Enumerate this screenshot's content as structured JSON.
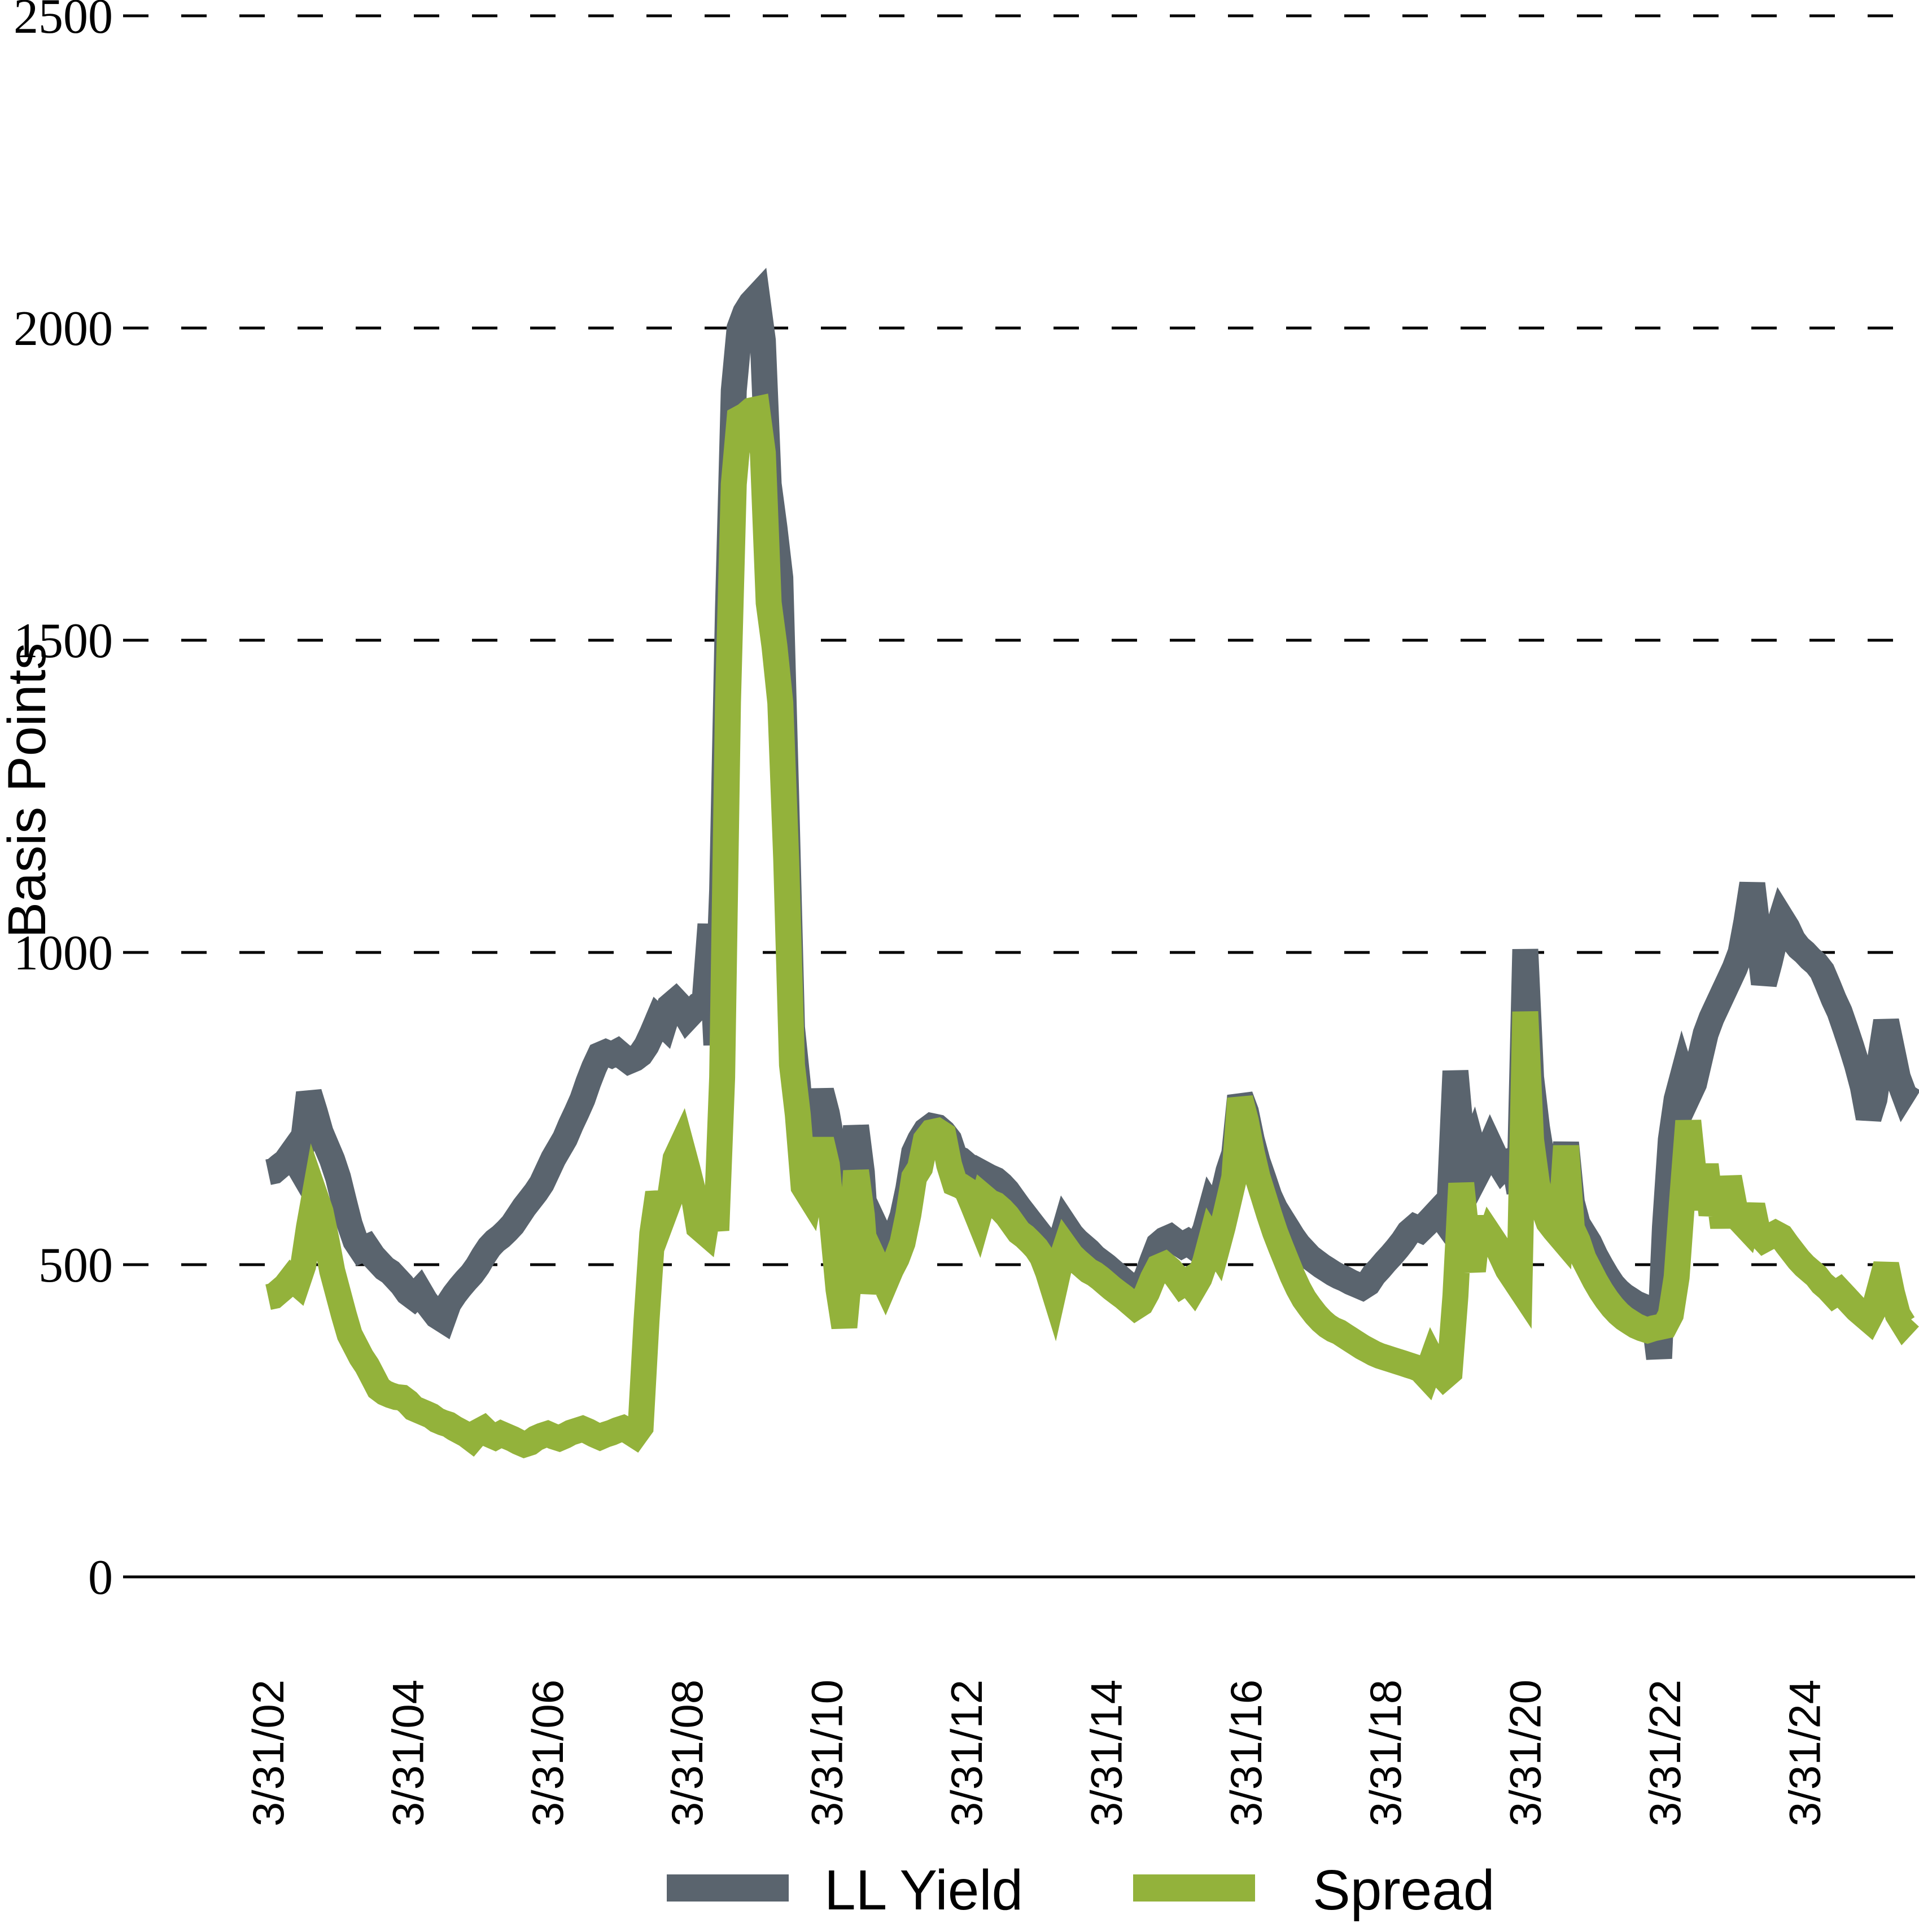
{
  "chart_data": {
    "type": "line",
    "title": "",
    "xlabel": "",
    "ylabel": "Basis Points",
    "unit": "basis points",
    "ylim": [
      0,
      2500
    ],
    "y_ticks": [
      0,
      500,
      1000,
      1500,
      2000,
      2500
    ],
    "grid": "horizontal-dashed",
    "legend_position": "bottom-center",
    "x_frequency": "monthly",
    "x_start": "3/31/02",
    "x_end": "9/30/25",
    "x_tick_labels": [
      "3/31/02",
      "3/31/04",
      "3/31/06",
      "3/31/08",
      "3/31/10",
      "3/31/12",
      "3/31/14",
      "3/31/16",
      "3/31/18",
      "3/31/20",
      "3/31/22",
      "3/31/24"
    ],
    "x_tick_indices": [
      0,
      24,
      48,
      72,
      96,
      120,
      144,
      168,
      192,
      216,
      240,
      264
    ],
    "series": [
      {
        "name": "LL Yield",
        "color": "#5A646E",
        "values": [
          648,
          650,
          658,
          665,
          678,
          662,
          696,
          775,
          745,
          712,
          690,
          668,
          640,
          602,
          565,
          538,
          524,
          528,
          514,
          504,
          494,
          488,
          478,
          468,
          455,
          448,
          458,
          442,
          430,
          418,
          412,
          438,
          452,
          464,
          475,
          485,
          498,
          514,
          528,
          538,
          545,
          554,
          564,
          578,
          592,
          604,
          616,
          630,
          650,
          670,
          686,
          702,
          724,
          744,
          765,
          792,
          816,
          836,
          840,
          836,
          841,
          833,
          826,
          830,
          837,
          851,
          871,
          893,
          884,
          914,
          922,
          912,
          896,
          906,
          916,
          921,
          1045,
          852,
          1100,
          1550,
          1900,
          2000,
          2025,
          2040,
          2050,
          1980,
          1750,
          1680,
          1600,
          1250,
          880,
          790,
          665,
          690,
          735,
          778,
          742,
          690,
          600,
          490,
          575,
          722,
          648,
          505,
          568,
          548,
          508,
          532,
          552,
          578,
          622,
          680,
          700,
          715,
          722,
          720,
          712,
          700,
          672,
          668,
          660,
          635,
          610,
          645,
          640,
          636,
          628,
          618,
          605,
          592,
          580,
          568,
          556,
          544,
          520,
          487,
          530,
          562,
          548,
          538,
          530,
          522,
          512,
          505,
          498,
          490,
          482,
          474,
          466,
          458,
          464,
          482,
          508,
          532,
          540,
          544,
          537,
          531,
          536,
          529,
          535,
          556,
          590,
          575,
          610,
          650,
          678,
          770,
          745,
          700,
          665,
          638,
          610,
          590,
          575,
          560,
          545,
          532,
          522,
          512,
          505,
          498,
          492,
          486,
          481,
          477,
          472,
          468,
          464,
          470,
          484,
          494,
          505,
          515,
          526,
          538,
          552,
          560,
          556,
          565,
          575,
          585,
          572,
          600,
          810,
          705,
          660,
          685,
          650,
          668,
          690,
          670,
          655,
          665,
          668,
          616,
          1005,
          800,
          720,
          662,
          645,
          628,
          615,
          695,
          600,
          565,
          550,
          535,
          515,
          498,
          482,
          468,
          458,
          450,
          444,
          438,
          434,
          430,
          425,
          350,
          560,
          700,
          765,
          800,
          770,
          790,
          830,
          870,
          895,
          915,
          935,
          955,
          975,
          1000,
          1050,
          1110,
          1030,
          950,
          985,
          1025,
          1055,
          1040,
          1020,
          1008,
          1000,
          990,
          982,
          970,
          948,
          925,
          905,
          878,
          850,
          820,
          785,
          735,
          765,
          830,
          890,
          845,
          800,
          775,
          790
        ]
      },
      {
        "name": "Spread",
        "color": "#93B23B",
        "values": [
          448,
          450,
          458,
          466,
          478,
          470,
          498,
          560,
          612,
          585,
          540,
          490,
          455,
          420,
          388,
          370,
          352,
          338,
          320,
          302,
          295,
          291,
          288,
          287,
          280,
          270,
          266,
          262,
          258,
          251,
          247,
          244,
          238,
          233,
          228,
          221,
          232,
          237,
          228,
          224,
          229,
          225,
          221,
          216,
          212,
          215,
          222,
          226,
          229,
          225,
          222,
          226,
          231,
          234,
          237,
          233,
          228,
          224,
          228,
          231,
          235,
          238,
          233,
          227,
          240,
          410,
          550,
          615,
          580,
          605,
          670,
          690,
          655,
          618,
          560,
          552,
          610,
          555,
          800,
          1400,
          1750,
          1855,
          1860,
          1868,
          1870,
          1800,
          1560,
          1490,
          1400,
          1150,
          820,
          740,
          625,
          610,
          660,
          700,
          660,
          560,
          460,
          400,
          500,
          650,
          580,
          455,
          510,
          490,
          470,
          492,
          510,
          535,
          580,
          640,
          655,
          700,
          712,
          714,
          708,
          660,
          630,
          626,
          620,
          598,
          575,
          608,
          600,
          596,
          588,
          578,
          565,
          552,
          545,
          536,
          526,
          512,
          488,
          458,
          500,
          528,
          515,
          506,
          498,
          490,
          485,
          478,
          470,
          462,
          455,
          448,
          440,
          432,
          438,
          455,
          478,
          496,
          500,
          492,
          481,
          468,
          474,
          462,
          478,
          505,
          540,
          525,
          560,
          600,
          640,
          766,
          730,
          680,
          640,
          610,
          580,
          552,
          528,
          505,
          482,
          462,
          445,
          432,
          420,
          410,
          402,
          396,
          392,
          386,
          380,
          374,
          368,
          363,
          358,
          354,
          351,
          348,
          345,
          342,
          339,
          336,
          332,
          322,
          348,
          330,
          320,
          328,
          450,
          630,
          540,
          490,
          577,
          518,
          546,
          532,
          512,
          492,
          478,
          464,
          905,
          700,
          630,
          594,
          568,
          556,
          545,
          690,
          558,
          538,
          510,
          492,
          474,
          458,
          444,
          432,
          422,
          414,
          408,
          402,
          398,
          395,
          398,
          400,
          402,
          420,
          480,
          610,
          730,
          640,
          590,
          660,
          580,
          630,
          560,
          640,
          590,
          570,
          560,
          595,
          550,
          540,
          545,
          550,
          545,
          532,
          520,
          508,
          498,
          490,
          482,
          470,
          462,
          452,
          458,
          448,
          438,
          428,
          420,
          412,
          430,
          465,
          500,
          455,
          420,
          405,
          415
        ]
      }
    ]
  },
  "legend": {
    "ll_yield_label": "LL Yield",
    "spread_label": "Spread"
  },
  "y_axis_title": "Basis Points"
}
